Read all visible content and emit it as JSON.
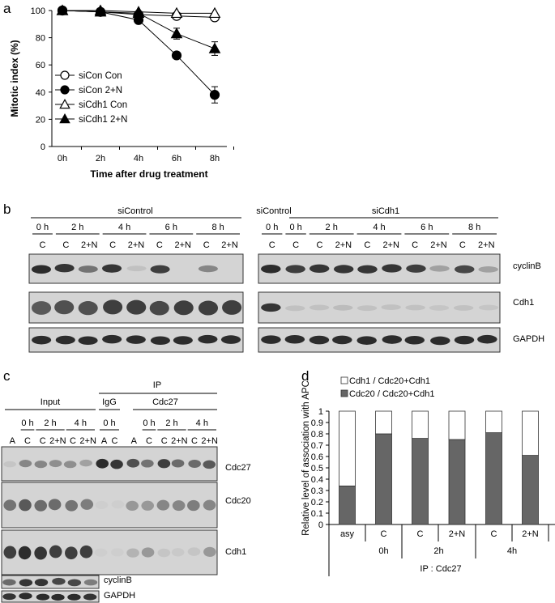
{
  "panels": {
    "a": "a",
    "b": "b",
    "c": "c",
    "d": "d"
  },
  "colors": {
    "line": "#000000",
    "blot_bg": "#cfcfcf",
    "band_dark": "#2a2a2a",
    "bar_dark": "#666666",
    "bar_light": "#ffffff"
  },
  "chart_data": [
    {
      "type": "line",
      "panel": "a",
      "xlabel": "Time after drug treatment",
      "ylabel": "Mitotic index (%)",
      "ylim": [
        0,
        100
      ],
      "yticks": [
        "0",
        "20",
        "40",
        "60",
        "80",
        "100"
      ],
      "categories": [
        "0h",
        "2h",
        "4h",
        "6h",
        "8h"
      ],
      "legend_position": "bottom-left",
      "grid": false,
      "series": [
        {
          "name": "siCon Con",
          "marker": "open-circle",
          "values": [
            100,
            99,
            97,
            96,
            95
          ],
          "err": [
            0,
            0,
            0,
            1,
            0
          ]
        },
        {
          "name": "siCon 2+N",
          "marker": "filled-circle",
          "values": [
            100,
            99,
            93,
            67,
            38
          ],
          "err": [
            0,
            0,
            0,
            0,
            6
          ]
        },
        {
          "name": "siCdh1 Con",
          "marker": "open-triangle",
          "values": [
            100,
            100,
            99,
            98,
            98
          ],
          "err": [
            0,
            0,
            0,
            0,
            0
          ]
        },
        {
          "name": "siCdh1 2+N",
          "marker": "filled-triangle",
          "values": [
            100,
            99,
            98,
            83,
            72
          ],
          "err": [
            0,
            0,
            0,
            4,
            5
          ]
        }
      ]
    },
    {
      "type": "bar",
      "panel": "d",
      "stacked": true,
      "ylabel": "Relative level of association with APC",
      "ylim": [
        0,
        1
      ],
      "yticks": [
        "0",
        "0.1",
        "0.2",
        "0.3",
        "0.4",
        "0.5",
        "0.6",
        "0.7",
        "0.8",
        "0.9",
        "1"
      ],
      "categories": [
        "asy",
        "C",
        "C",
        "2+N",
        "C",
        "2+N"
      ],
      "time_groups": [
        "0h",
        "2h",
        "4h"
      ],
      "xlabel": "IP : Cdc27",
      "legend_position": "top",
      "series": [
        {
          "name": "Cdc20 / Cdc20+Cdh1",
          "values": [
            0.34,
            0.8,
            0.76,
            0.75,
            0.81,
            0.61
          ]
        },
        {
          "name": "Cdh1 / Cdc20+Cdh1",
          "values": [
            0.66,
            0.2,
            0.24,
            0.25,
            0.19,
            0.39
          ]
        }
      ]
    }
  ],
  "blot_b": {
    "left_group": "siControl",
    "right_group_ctrl": "siControl",
    "right_group": "siCdh1",
    "left_times": [
      "0 h",
      "2 h",
      "4 h",
      "6 h",
      "8 h"
    ],
    "left_lanes": [
      "C",
      "C",
      "2+N",
      "C",
      "2+N",
      "C",
      "2+N",
      "C",
      "2+N"
    ],
    "right_times": [
      "0 h",
      "0 h",
      "2 h",
      "4 h",
      "6 h",
      "8 h"
    ],
    "right_lanes": [
      "C",
      "C",
      "C",
      "2+N",
      "C",
      "2+N",
      "C",
      "2+N",
      "C",
      "2+N"
    ],
    "rows": [
      "cyclinB",
      "Cdh1",
      "GAPDH"
    ]
  },
  "blot_c": {
    "input_label": "Input",
    "ip_label": "IP",
    "igg_label": "IgG",
    "cdc27_label": "Cdc27",
    "input_times": [
      "0 h",
      "2 h",
      "4 h"
    ],
    "input_lanes": [
      "A",
      "C",
      "C",
      "2+N",
      "C",
      "2+N"
    ],
    "igg_time": "0 h",
    "igg_lanes": [
      "A",
      "C"
    ],
    "ip_times": [
      "0 h",
      "2 h",
      "4 h"
    ],
    "ip_lanes": [
      "A",
      "C",
      "C",
      "2+N",
      "C",
      "2+N"
    ],
    "rows": [
      "Cdc27",
      "Cdc20",
      "Cdh1",
      "cyclinB",
      "GAPDH"
    ]
  }
}
